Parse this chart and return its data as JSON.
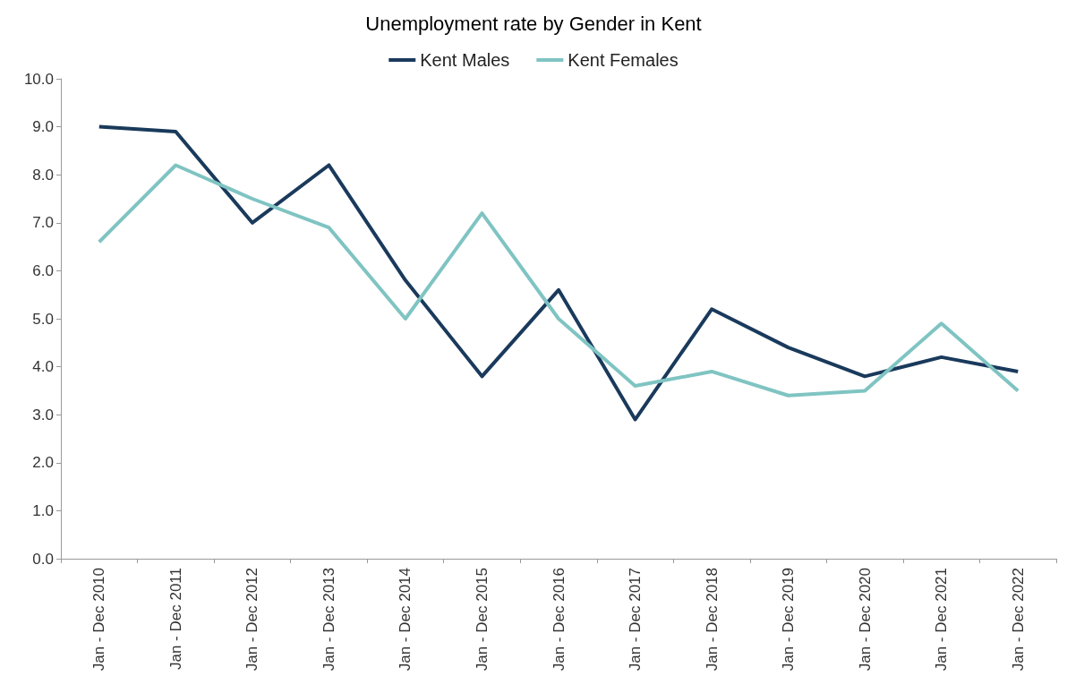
{
  "chart_data": {
    "type": "line",
    "title": "Unemployment rate by Gender in Kent",
    "categories": [
      "Jan - Dec 2010",
      "Jan - Dec 2011",
      "Jan - Dec 2012",
      "Jan - Dec 2013",
      "Jan - Dec 2014",
      "Jan - Dec 2015",
      "Jan - Dec 2016",
      "Jan - Dec 2017",
      "Jan - Dec 2018",
      "Jan - Dec 2019",
      "Jan - Dec 2020",
      "Jan - Dec 2021",
      "Jan - Dec 2022"
    ],
    "series": [
      {
        "name": "Kent Males",
        "color": "#1a3a5c",
        "values": [
          9.0,
          8.9,
          7.0,
          8.2,
          5.8,
          3.8,
          5.6,
          2.9,
          5.2,
          4.4,
          3.8,
          4.2,
          3.9
        ]
      },
      {
        "name": "Kent Females",
        "color": "#7fc4c2",
        "values": [
          6.6,
          8.2,
          7.5,
          6.9,
          5.0,
          7.2,
          5.0,
          3.6,
          3.9,
          3.4,
          3.5,
          4.9,
          3.5
        ]
      }
    ],
    "ylim": [
      0,
      10
    ],
    "yticks": [
      {
        "value": 0,
        "label": "0.0"
      },
      {
        "value": 1,
        "label": "1.0"
      },
      {
        "value": 2,
        "label": "2.0"
      },
      {
        "value": 3,
        "label": "3.0"
      },
      {
        "value": 4,
        "label": "4.0"
      },
      {
        "value": 5,
        "label": "5.0"
      },
      {
        "value": 6,
        "label": "6.0"
      },
      {
        "value": 7,
        "label": "7.0"
      },
      {
        "value": 8,
        "label": "8.0"
      },
      {
        "value": 9,
        "label": "9.0"
      },
      {
        "value": 10,
        "label": "10.0"
      }
    ],
    "grid": false,
    "legend": "top",
    "marker": "none",
    "line_style": "solid"
  }
}
